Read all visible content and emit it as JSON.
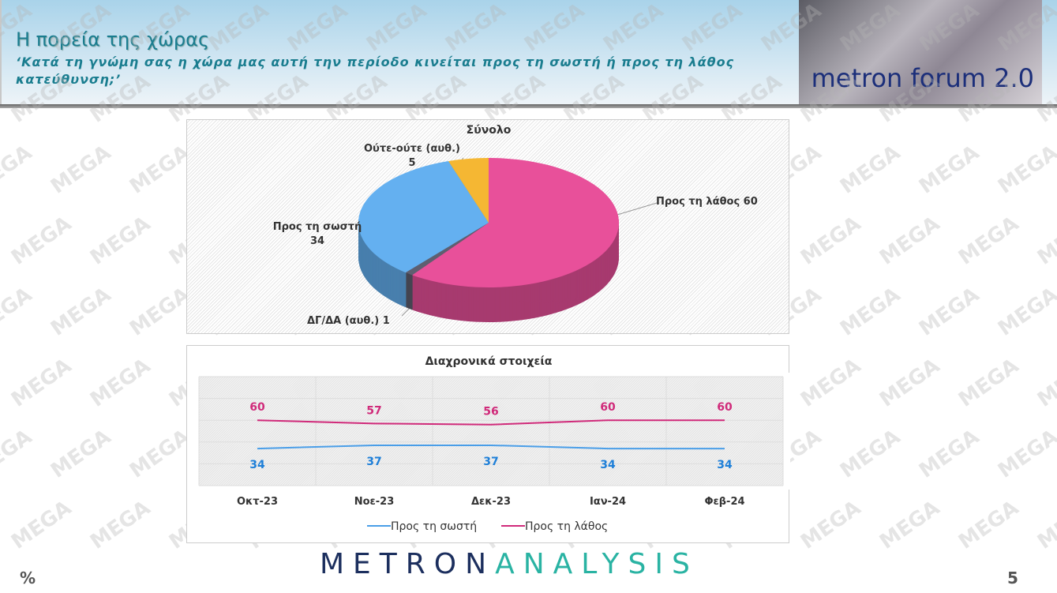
{
  "header": {
    "title": "Η πορεία της χώρας",
    "subtitle": "‘Κατά τη γνώμη σας η χώρα μας αυτή την περίοδο κινείται προς τη σωστή ή προς τη λάθος κατεύθυνση;’",
    "brand_image_text": "metron forum 2.0"
  },
  "watermark": "MEGA",
  "chart_data": [
    {
      "type": "pie",
      "title": "Σύνολο",
      "slices": [
        {
          "label": "Προς τη λάθος",
          "value": 60,
          "display": "Προς τη λάθος 60",
          "color": "#e8509a"
        },
        {
          "label": "ΔΓ/ΔΑ (αυθ.)",
          "value": 1,
          "display": "ΔΓ/ΔΑ (αυθ.) 1",
          "color": "#5e5f70"
        },
        {
          "label": "Προς τη σωστή",
          "value": 34,
          "display_line1": "Προς τη σωστή",
          "display_line2": "34",
          "color": "#64b0f0"
        },
        {
          "label": "Ούτε-ούτε (αυθ.)",
          "value": 5,
          "display_line1": "Ούτε-ούτε (αυθ.)",
          "display_line2": "5",
          "color": "#f5b733"
        }
      ]
    },
    {
      "type": "line",
      "title": "Διαχρονικά στοιχεία",
      "categories": [
        "Οκτ-23",
        "Νοε-23",
        "Δεκ-23",
        "Ιαν-24",
        "Φεβ-24"
      ],
      "ylim": [
        0,
        100
      ],
      "grid": true,
      "legend": "bottom",
      "series": [
        {
          "name": "Προς τη σωστή",
          "values": [
            34,
            37,
            37,
            34,
            34
          ],
          "color": "#4a9ee8",
          "label_color": "#1e7fd8"
        },
        {
          "name": "Προς τη λάθος",
          "values": [
            60,
            57,
            56,
            60,
            60
          ],
          "color": "#d02a7a",
          "label_color": "#d02a7a"
        }
      ]
    }
  ],
  "footer": {
    "logo_a": "METRON",
    "logo_b": "ANALYSIS",
    "unit": "%",
    "page": "5"
  }
}
